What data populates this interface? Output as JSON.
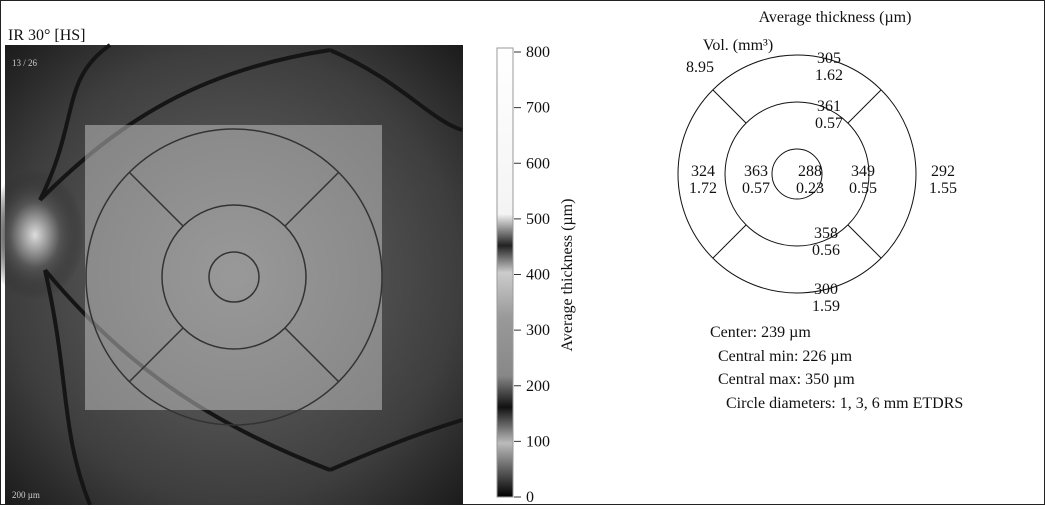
{
  "image_label": "IR 30° [HS]",
  "image_index": "13 / 26",
  "scale_bar": "200 µm",
  "colorbar": {
    "label": "Average thickness (µm)",
    "lim": [
      0,
      800
    ],
    "ticks": [
      0,
      100,
      200,
      300,
      400,
      500,
      600,
      700,
      800
    ]
  },
  "etdrs": {
    "title": "Average thickness (µm)",
    "volume_label": "Vol. (mm³)",
    "total_volume": 8.95,
    "sectors": [
      {
        "thickness": 305,
        "volume": 1.62
      },
      {
        "thickness": 361,
        "volume": 0.57
      },
      {
        "thickness": 324,
        "volume": 1.72
      },
      {
        "thickness": 363,
        "volume": 0.57
      },
      {
        "thickness": 288,
        "volume": 0.23
      },
      {
        "thickness": 349,
        "volume": 0.55
      },
      {
        "thickness": 292,
        "volume": 1.55
      },
      {
        "thickness": 358,
        "volume": 0.56
      },
      {
        "thickness": 300,
        "volume": 1.59
      }
    ],
    "notes": [
      "Center: 239 µm",
      "Central min: 226 µm",
      "Central max: 350 µm",
      "Circle diameters: 1, 3, 6 mm ETDRS"
    ]
  }
}
